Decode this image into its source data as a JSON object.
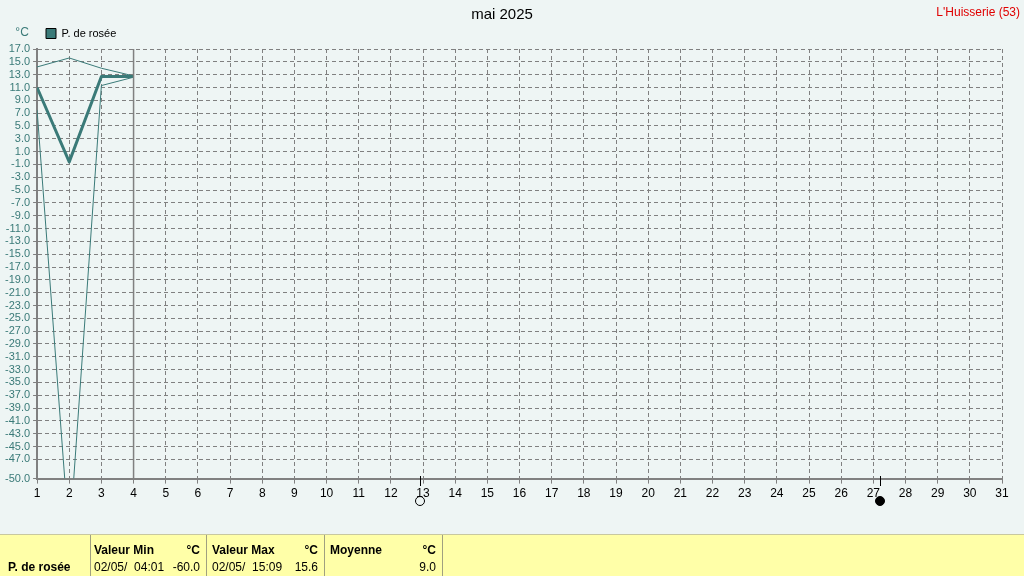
{
  "chart_data": {
    "type": "line",
    "title": "mai 2025",
    "ylabel": "°C",
    "x": [
      1,
      2,
      3,
      4
    ],
    "series": [
      {
        "name": "P. de rosée",
        "color": "#3a7a78",
        "values": [
          11.0,
          -0.6,
          12.7,
          12.7
        ]
      },
      {
        "color": "#3a7a78",
        "values": [
          14.2,
          15.6,
          14.0,
          12.8
        ]
      },
      {
        "color": "#3a7a78",
        "x": [
          1,
          1.86,
          2,
          2.14,
          3,
          4
        ],
        "values": [
          7.5,
          -50,
          null,
          -50,
          11.3,
          12.6
        ]
      }
    ],
    "xlim": [
      1,
      31
    ],
    "xticks": [
      1,
      2,
      3,
      4,
      5,
      6,
      7,
      8,
      9,
      10,
      11,
      12,
      13,
      14,
      15,
      16,
      17,
      18,
      19,
      20,
      21,
      22,
      23,
      24,
      25,
      26,
      27,
      28,
      29,
      30,
      31
    ],
    "ylim": [
      -50,
      17
    ],
    "yticks": [
      {
        "value": 17,
        "label": "17.0"
      },
      {
        "value": 15,
        "label": "15.0"
      },
      {
        "value": 13,
        "label": "13.0"
      },
      {
        "value": 11,
        "label": "11.0"
      },
      {
        "value": 9,
        "label": "9.0"
      },
      {
        "value": 7,
        "label": "7.0"
      },
      {
        "value": 5,
        "label": "5.0"
      },
      {
        "value": 3,
        "label": "3.0"
      },
      {
        "value": 1,
        "label": "1.0"
      },
      {
        "value": -1,
        "label": "-1.0"
      },
      {
        "value": -3,
        "label": "-3.0"
      },
      {
        "value": -5,
        "label": "-5.0"
      },
      {
        "value": -7,
        "label": "-7.0"
      },
      {
        "value": -9,
        "label": "-9.0"
      },
      {
        "value": -11,
        "label": "-11.0"
      },
      {
        "value": -13,
        "label": "-13.0"
      },
      {
        "value": -15,
        "label": "-15.0"
      },
      {
        "value": -17,
        "label": "-17.0"
      },
      {
        "value": -19,
        "label": "-19.0"
      },
      {
        "value": -21,
        "label": "-21.0"
      },
      {
        "value": -23,
        "label": "-23.0"
      },
      {
        "value": -25,
        "label": "-25.0"
      },
      {
        "value": -27,
        "label": "-27.0"
      },
      {
        "value": -29,
        "label": "-29.0"
      },
      {
        "value": -31,
        "label": "-31.0"
      },
      {
        "value": -33,
        "label": "-33.0"
      },
      {
        "value": -35,
        "label": "-35.0"
      },
      {
        "value": -37,
        "label": "-37.0"
      },
      {
        "value": -39,
        "label": "-39.0"
      },
      {
        "value": -41,
        "label": "-41.0"
      },
      {
        "value": -43,
        "label": "-43.0"
      },
      {
        "value": -45,
        "label": "-45.0"
      },
      {
        "value": -47,
        "label": "-47.0"
      },
      {
        "value": -50,
        "label": "-50.0"
      }
    ],
    "ref_lines": [
      {
        "axis": "x",
        "value": 4,
        "color": "#808080"
      }
    ],
    "grid": true,
    "legend": "top left",
    "marker": "none",
    "line_style": "solid",
    "annotations": [
      "L'Huisserie (53)",
      "P. de rosée",
      "Valeur Min",
      "°C",
      "02/05/  04:01",
      "-60.0",
      "Valeur Max",
      "°C",
      "02/05/  15:09",
      "15.6",
      "Moyenne",
      "°C",
      "9.0"
    ]
  }
}
